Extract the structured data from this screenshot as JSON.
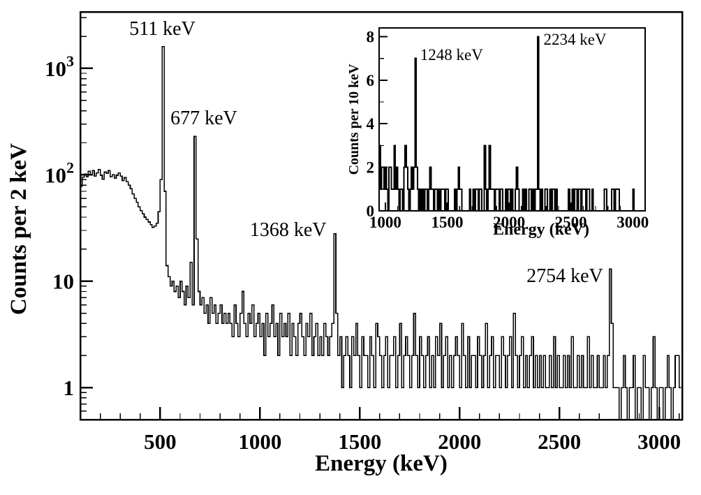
{
  "figure": {
    "background_color": "#ffffff",
    "line_color": "#000000",
    "description": "Gamma-ray energy spectrum histogram with log-scale main panel and linear-scale inset panel"
  },
  "chart_data": [
    {
      "id": "main",
      "type": "bar",
      "subtype": "histogram-step",
      "title": "",
      "xlabel": "Energy (keV)",
      "ylabel": "Counts per 2 keV",
      "xlim": [
        100,
        3115
      ],
      "ylim": [
        0.5,
        3400
      ],
      "yscale": "log",
      "grid": false,
      "legend": "none",
      "x_major_ticks": [
        500,
        1000,
        1500,
        2000,
        2500,
        3000
      ],
      "x_minor_step": 100,
      "y_major_ticks": [
        {
          "value": 1,
          "label": "1"
        },
        {
          "value": 10,
          "label": "10"
        },
        {
          "value": 100,
          "label": "10^2"
        },
        {
          "value": 1000,
          "label": "10^3"
        }
      ],
      "y_minor_ticks": [
        0.6,
        0.7,
        0.8,
        0.9,
        2,
        3,
        4,
        5,
        6,
        7,
        8,
        9,
        20,
        30,
        40,
        50,
        60,
        70,
        80,
        90,
        200,
        300,
        400,
        500,
        600,
        700,
        800,
        900,
        2000,
        3000
      ],
      "bin_start": 100,
      "bin_width": 10,
      "counts": [
        78,
        95,
        102,
        96,
        108,
        100,
        110,
        97,
        104,
        112,
        99,
        91,
        106,
        103,
        110,
        96,
        100,
        93,
        99,
        104,
        97,
        88,
        94,
        86,
        80,
        74,
        66,
        60,
        55,
        50,
        46,
        43,
        40,
        38,
        36,
        34,
        32,
        33,
        35,
        45,
        90,
        1600,
        70,
        14,
        11,
        9,
        10,
        8,
        9,
        7,
        10,
        8,
        6,
        9,
        7,
        15,
        6,
        230,
        25,
        8,
        6,
        7,
        5,
        6,
        4,
        7,
        5,
        6,
        4,
        5,
        6,
        4,
        5,
        4,
        5,
        4,
        3,
        6,
        4,
        3,
        5,
        8,
        4,
        3,
        5,
        4,
        6,
        3,
        4,
        5,
        3,
        4,
        2,
        5,
        3,
        4,
        6,
        3,
        4,
        2,
        5,
        3,
        4,
        3,
        5,
        2,
        4,
        3,
        2,
        4,
        5,
        3,
        2,
        4,
        3,
        5,
        2,
        3,
        4,
        2,
        3,
        2,
        4,
        3,
        2,
        3,
        4,
        28,
        5,
        2,
        3,
        1,
        2,
        3,
        2,
        1,
        3,
        2,
        4,
        2,
        1,
        3,
        2,
        2,
        1,
        3,
        2,
        1,
        4,
        3,
        2,
        1,
        2,
        3,
        1,
        2,
        2,
        3,
        1,
        2,
        4,
        1,
        2,
        3,
        2,
        1,
        2,
        5,
        2,
        1,
        3,
        2,
        1,
        2,
        3,
        1,
        2,
        1,
        3,
        2,
        4,
        1,
        2,
        3,
        1,
        2,
        1,
        2,
        3,
        2,
        1,
        4,
        2,
        1,
        3,
        1,
        2,
        2,
        1,
        3,
        2,
        1,
        2,
        4,
        1,
        2,
        3,
        1,
        2,
        2,
        1,
        3,
        2,
        1,
        2,
        3,
        1,
        5,
        2,
        1,
        2,
        3,
        1,
        2,
        1,
        2,
        3,
        1,
        2,
        1,
        2,
        1,
        2,
        1,
        1,
        2,
        1,
        3,
        1,
        2,
        1,
        1,
        2,
        1,
        2,
        1,
        3,
        1,
        1,
        2,
        1,
        2,
        1,
        1,
        3,
        1,
        2,
        1,
        1,
        2,
        1,
        1,
        2,
        1,
        2,
        13,
        4,
        1,
        1,
        1,
        0,
        1,
        2,
        1,
        0,
        1,
        1,
        2,
        0,
        1,
        1,
        0,
        2,
        1,
        1,
        0,
        1,
        3,
        1,
        0,
        1,
        1,
        0,
        1,
        2,
        1,
        0,
        1,
        2,
        2,
        1
      ],
      "annotations": [
        {
          "label": "511 keV",
          "energy": 511,
          "peak_counts": 1600,
          "anchor": "middle",
          "dx": 0,
          "baseline_y": 50
        },
        {
          "label": "677 keV",
          "energy": 677,
          "peak_counts": 230,
          "anchor": "middle",
          "dx": 12,
          "baseline_y": 178
        },
        {
          "label": "1368 keV",
          "energy": 1368,
          "peak_counts": 28,
          "anchor": "end",
          "dx": -10,
          "baseline_y": 338
        },
        {
          "label": "2754 keV",
          "energy": 2754,
          "peak_counts": 13,
          "anchor": "end",
          "dx": -10,
          "baseline_y": 404
        }
      ]
    },
    {
      "id": "inset",
      "type": "bar",
      "subtype": "histogram-step",
      "title": "",
      "xlabel": "Energy (keV)",
      "ylabel": "Counts per 10 keV",
      "xlim": [
        950,
        3100
      ],
      "ylim": [
        0,
        8.4
      ],
      "yscale": "linear",
      "grid": false,
      "legend": "none",
      "x_major_ticks": [
        1000,
        1500,
        2000,
        2500,
        3000
      ],
      "x_minor_step": 100,
      "y_major_ticks": [
        {
          "value": 0,
          "label": "0"
        },
        {
          "value": 2,
          "label": "2"
        },
        {
          "value": 4,
          "label": "4"
        },
        {
          "value": 6,
          "label": "6"
        },
        {
          "value": 8,
          "label": "8"
        }
      ],
      "y_minor_ticks": [
        1,
        3,
        5,
        7
      ],
      "bin_start": 950,
      "bin_width": 10,
      "counts": [
        3,
        1,
        2,
        2,
        1,
        2,
        1,
        0,
        2,
        2,
        1,
        1,
        3,
        1,
        2,
        1,
        0,
        1,
        1,
        0,
        2,
        3,
        2,
        1,
        0,
        1,
        2,
        1,
        2,
        7,
        2,
        1,
        0,
        1,
        0,
        1,
        0,
        1,
        1,
        0,
        1,
        2,
        1,
        1,
        0,
        1,
        1,
        0,
        1,
        0,
        1,
        1,
        1,
        0,
        1,
        1,
        0,
        0,
        0,
        0,
        0,
        1,
        0,
        1,
        2,
        1,
        1,
        0,
        0,
        0,
        0,
        0,
        0,
        1,
        0,
        0,
        1,
        0,
        1,
        1,
        0,
        1,
        1,
        0,
        0,
        3,
        1,
        0,
        1,
        3,
        1,
        1,
        1,
        0,
        1,
        1,
        1,
        0,
        1,
        1,
        0,
        0,
        1,
        0,
        1,
        1,
        0,
        1,
        0,
        0,
        1,
        2,
        1,
        0,
        0,
        0,
        1,
        0,
        1,
        0,
        0,
        1,
        1,
        0,
        1,
        0,
        1,
        1,
        8,
        1,
        0,
        1,
        0,
        0,
        1,
        1,
        0,
        0,
        1,
        0,
        1,
        1,
        0,
        1,
        0,
        0,
        0,
        0,
        0,
        0,
        0,
        0,
        0,
        1,
        0,
        0,
        1,
        0,
        1,
        1,
        0,
        1,
        1,
        0,
        1,
        1,
        1,
        0,
        1,
        1,
        0,
        0,
        1,
        0,
        0,
        0,
        0,
        0,
        0,
        0,
        0,
        0,
        1,
        1,
        0,
        0,
        0,
        0,
        1,
        1,
        0,
        1,
        1,
        1,
        0,
        0,
        0,
        0,
        0,
        0,
        0,
        0,
        0,
        0,
        0,
        1,
        0,
        0,
        0,
        0,
        0,
        0,
        0,
        0,
        0
      ],
      "annotations": [
        {
          "label": "1248 keV",
          "energy": 1248,
          "peak_counts": 7,
          "anchor": "start",
          "dx": 6,
          "baseline_y": 86
        },
        {
          "label": "2234 keV",
          "energy": 2234,
          "peak_counts": 8,
          "anchor": "start",
          "dx": 8,
          "baseline_y": 64
        }
      ]
    }
  ]
}
